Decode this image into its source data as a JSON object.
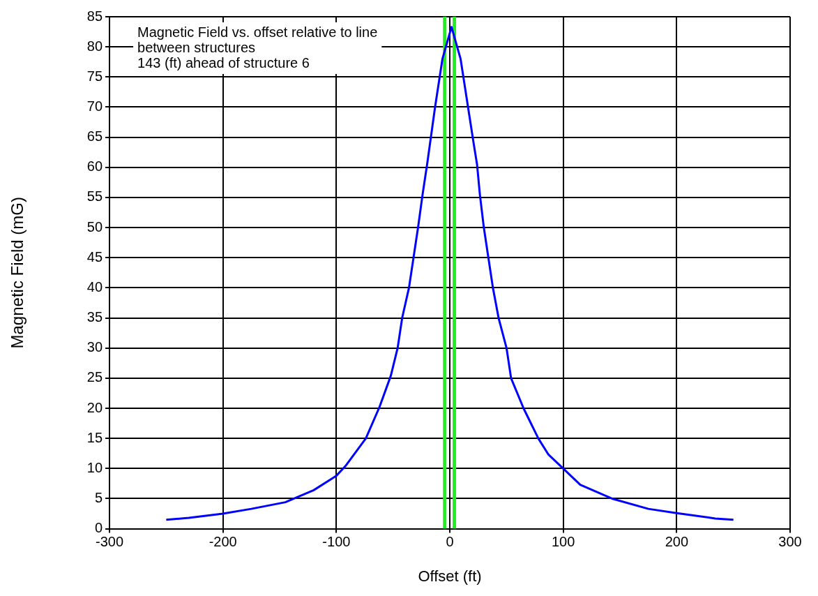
{
  "chart_data": {
    "type": "line",
    "xlabel": "Offset (ft)",
    "ylabel": "Magnetic Field (mG)",
    "annotations": [
      "Magnetic Field vs. offset relative to line between structures",
      "143 (ft) ahead of structure 6"
    ],
    "x": [
      -250,
      -230,
      -200,
      -175,
      -145,
      -120,
      -100,
      -92,
      -74,
      -62,
      -52,
      -46,
      -42,
      -36,
      -32,
      -28,
      -24,
      -20,
      -13,
      -6.5,
      1.5,
      9.5,
      21,
      24,
      26.5,
      30,
      34,
      38,
      43,
      50,
      54,
      65,
      78,
      87,
      100,
      115,
      143,
      175,
      200,
      234,
      250
    ],
    "series": [
      {
        "color": "#0000ff",
        "values": [
          1.5,
          1.8,
          2.5,
          3.3,
          4.4,
          6.4,
          8.8,
          10.4,
          15,
          20.2,
          25.4,
          30,
          35,
          40,
          45,
          50,
          55.5,
          60.5,
          70,
          78,
          83.3,
          78,
          64,
          60.5,
          55.5,
          50,
          45,
          40,
          35,
          30,
          25,
          20,
          15,
          12.3,
          10,
          7.3,
          5,
          3.3,
          2.6,
          1.7,
          1.5
        ]
      }
    ],
    "xlim": [
      -300,
      300
    ],
    "xticks": [
      -300,
      -200,
      -100,
      0,
      100,
      200,
      300
    ],
    "ylim": [
      0,
      85
    ],
    "yticks": [
      0,
      5,
      10,
      15,
      20,
      25,
      30,
      35,
      40,
      45,
      50,
      55,
      60,
      65,
      70,
      75,
      80,
      85
    ],
    "ref_lines": [
      {
        "axis": "x",
        "value": -4.5,
        "color": "#22ee22"
      },
      {
        "axis": "x",
        "value": 4,
        "color": "#22ee22"
      }
    ],
    "grid": true,
    "legend": false,
    "marker": "none",
    "line_style": "solid"
  }
}
